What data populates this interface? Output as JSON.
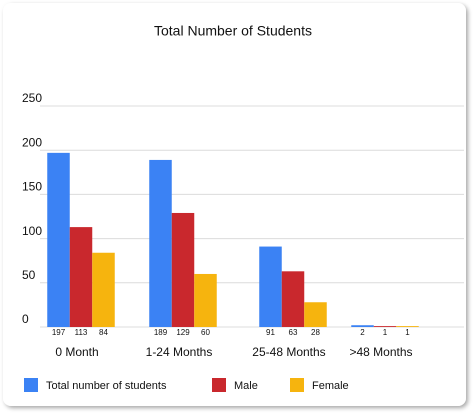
{
  "chart_data": {
    "type": "bar",
    "title": "Total Number of Students",
    "categories": [
      "0 Month",
      "1-24 Months",
      "25-48 Months",
      ">48 Months"
    ],
    "series": [
      {
        "name": "Total number of students",
        "color": "#3b82f4",
        "values": [
          197,
          189,
          91,
          2
        ]
      },
      {
        "name": "Male",
        "color": "#c9282d",
        "values": [
          113,
          129,
          63,
          1
        ]
      },
      {
        "name": "Female",
        "color": "#f6b40e",
        "values": [
          84,
          60,
          28,
          1
        ]
      }
    ],
    "ylim": [
      0,
      250
    ],
    "yticks": [
      0,
      50,
      100,
      150,
      200,
      250
    ],
    "grid": true,
    "legend": "bottom"
  }
}
